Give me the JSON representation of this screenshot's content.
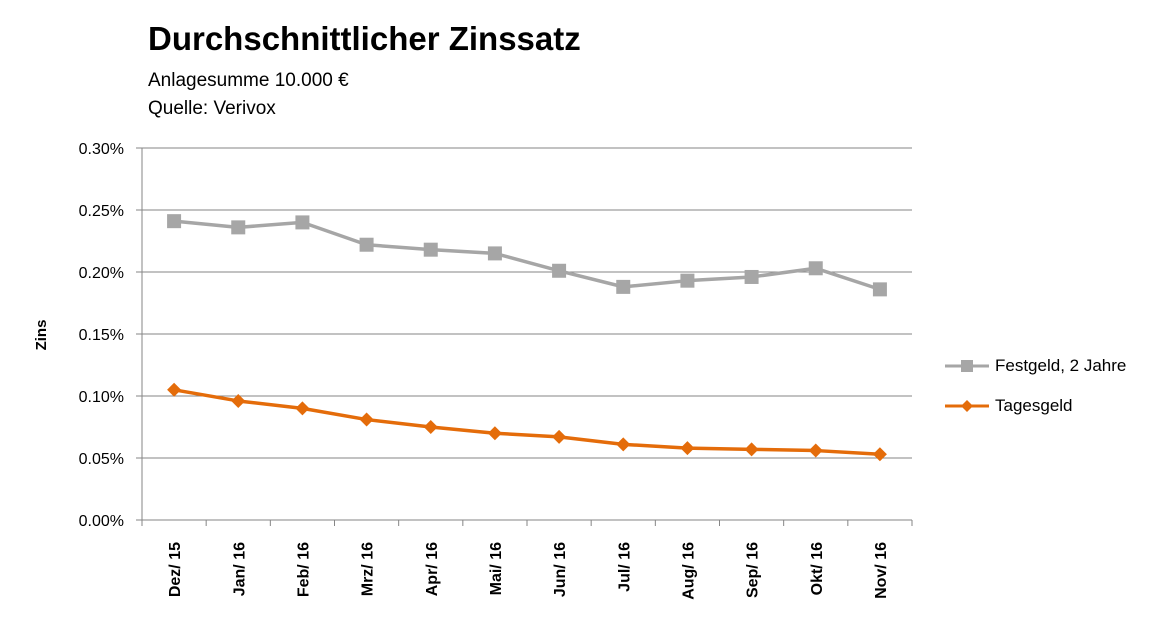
{
  "chart_data": {
    "type": "line",
    "title": "Durchschnittlicher Zinssatz",
    "subtitles": [
      "Anlagesumme 10.000 €",
      "Quelle: Verivox"
    ],
    "ylabel": "Zins",
    "xlabel": "",
    "categories": [
      "Dez/ 15",
      "Jan/ 16",
      "Feb/ 16",
      "Mrz/ 16",
      "Apr/ 16",
      "Mai/ 16",
      "Jun/ 16",
      "Jul/ 16",
      "Aug/ 16",
      "Sep/ 16",
      "Okt/ 16",
      "Nov/ 16"
    ],
    "ylim": [
      0,
      0.3
    ],
    "yticks": [
      "0.00%",
      "0.05%",
      "0.10%",
      "0.15%",
      "0.20%",
      "0.25%",
      "0.30%"
    ],
    "grid": true,
    "legend_position": "right",
    "series": [
      {
        "name": "Festgeld, 2 Jahre",
        "color": "#A6A6A6",
        "marker": "square",
        "values": [
          0.241,
          0.236,
          0.24,
          0.222,
          0.218,
          0.215,
          0.201,
          0.188,
          0.193,
          0.196,
          0.203,
          0.186
        ]
      },
      {
        "name": "Tagesgeld",
        "color": "#E46C0A",
        "marker": "diamond",
        "values": [
          0.105,
          0.096,
          0.09,
          0.081,
          0.075,
          0.07,
          0.067,
          0.061,
          0.058,
          0.057,
          0.056,
          0.053
        ]
      }
    ]
  }
}
